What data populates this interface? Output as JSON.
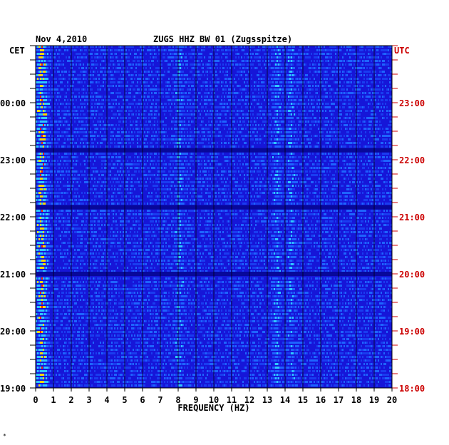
{
  "chart_data": {
    "type": "heatmap",
    "title": "ZUGS HHZ BW 01 (Zugsspitze)",
    "date": "Nov 4,2010",
    "left_timezone": "CET",
    "right_timezone": "UTC",
    "xlabel": "FREQUENCY (HZ)",
    "xlim": [
      0,
      20
    ],
    "x_ticks": [
      "0",
      "1",
      "2",
      "3",
      "4",
      "5",
      "6",
      "7",
      "8",
      "9",
      "10",
      "11",
      "12",
      "13",
      "14",
      "15",
      "16",
      "17",
      "18",
      "19",
      "20"
    ],
    "y_range_utc": [
      "18:00",
      "23:55"
    ],
    "left_time_ticks": [
      "19:00",
      "20:00",
      "21:00",
      "22:00",
      "23:00",
      "00:00"
    ],
    "right_time_ticks": [
      "18:00",
      "19:00",
      "20:00",
      "21:00",
      "22:00",
      "23:00"
    ],
    "colors": {
      "background": "#1616d8",
      "low": "#0a0ac8",
      "mid": "#1e64ff",
      "high": "#2ec8ff",
      "hot": "#ffd800",
      "peak": "#ff2000",
      "utc_text": "#cc0000",
      "axis_text": "#000000"
    },
    "dominant_bands_hz": [
      0.3,
      8.0,
      13.5,
      14.3
    ],
    "dark_gap_rows_utc": [
      "22:10",
      "21:10",
      "20:00"
    ]
  },
  "footer_mark": "*"
}
